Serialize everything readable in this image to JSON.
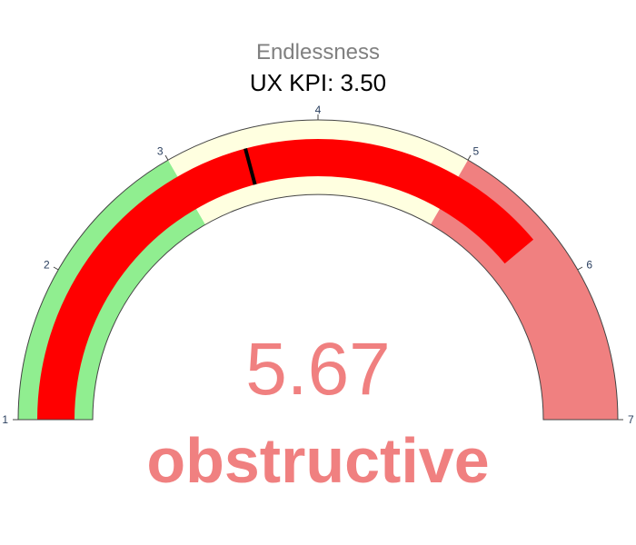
{
  "chart_data": {
    "type": "gauge",
    "title": "Endlessness",
    "subtitle": "UX KPI: 3.50",
    "value": 5.67,
    "value_text": "5.67",
    "label": "obstructive",
    "range": [
      1,
      7
    ],
    "ticks": [
      1,
      2,
      3,
      4,
      5,
      6,
      7
    ],
    "reference": 3.5,
    "steps": [
      {
        "range": [
          1,
          3
        ],
        "color": "#90ee90"
      },
      {
        "range": [
          3,
          5
        ],
        "color": "#ffffe0"
      },
      {
        "range": [
          5,
          7
        ],
        "color": "#f08080"
      }
    ],
    "bar": {
      "range": [
        1,
        5.67
      ],
      "color": "#ff0000"
    },
    "colors": {
      "title": "#808080",
      "subtitle": "#000000",
      "value": "#f08080",
      "label": "#f08080",
      "tick_label": "#2a3f5f",
      "reference": "#000000"
    }
  }
}
